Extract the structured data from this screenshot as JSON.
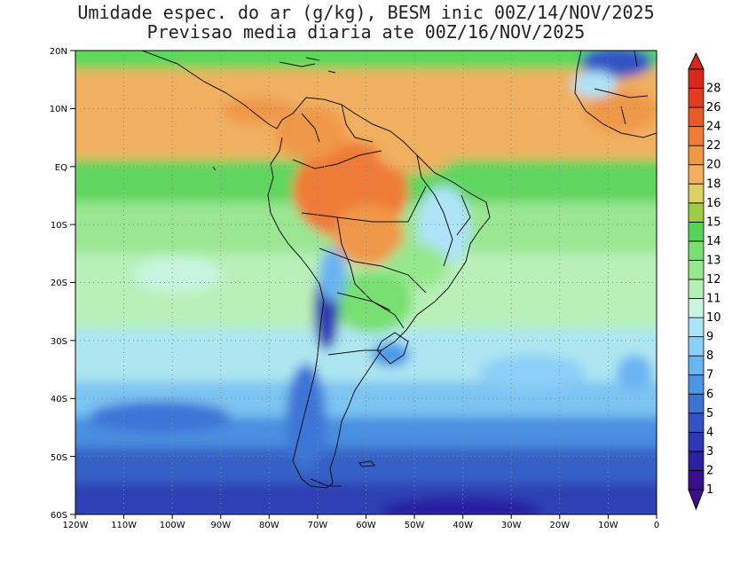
{
  "title_line1": "Umidade espec. do ar (g/kg), BESM inic 00Z/14/NOV/2025",
  "title_line2": "Previsao media diaria ate 00Z/16/NOV/2025",
  "lat_labels": [
    "20N",
    "10N",
    "EQ",
    "10S",
    "20S",
    "30S",
    "40S",
    "50S",
    "60S"
  ],
  "lon_labels": [
    "120W",
    "110W",
    "100W",
    "90W",
    "80W",
    "70W",
    "60W",
    "50W",
    "40W",
    "30W",
    "20W",
    "10W",
    "0"
  ],
  "colorbar": {
    "labels": [
      "1",
      "2",
      "3",
      "4",
      "5",
      "6",
      "7",
      "8",
      "9",
      "10",
      "11",
      "12",
      "13",
      "14",
      "15",
      "16",
      "18",
      "20",
      "22",
      "24",
      "26",
      "28"
    ],
    "colors": [
      "#3a0f8a",
      "#2c1fa0",
      "#2d38b4",
      "#3353c4",
      "#3c74d6",
      "#4a96e8",
      "#6ab4f2",
      "#8ccff8",
      "#aee3f8",
      "#c8f5e0",
      "#b4f0b4",
      "#96e88e",
      "#78e070",
      "#56d456",
      "#9ccc44",
      "#ddd066",
      "#f0b060",
      "#f09848",
      "#f07a38",
      "#e85a28",
      "#e03c20",
      "#d82818"
    ]
  },
  "chart_data": {
    "type": "heatmap",
    "title": "Umidade espec. do ar (g/kg), BESM inic 00Z/14/NOV/2025",
    "subtitle": "Previsao media diaria ate 00Z/16/NOV/2025",
    "units": "g/kg",
    "xlim": [
      -120,
      0
    ],
    "ylim": [
      -60,
      20
    ],
    "levels": [
      1,
      2,
      3,
      4,
      5,
      6,
      7,
      8,
      9,
      10,
      11,
      12,
      13,
      14,
      15,
      16,
      18,
      20,
      22,
      24,
      26,
      28
    ],
    "grid": true,
    "legend": "right"
  }
}
